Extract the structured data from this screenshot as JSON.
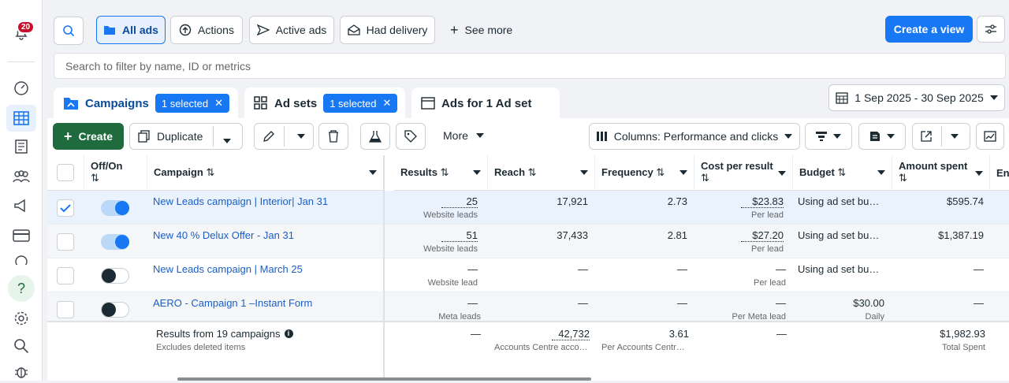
{
  "notifications": {
    "count": "20"
  },
  "toolbar": {
    "all_ads": "All ads",
    "actions": "Actions",
    "active_ads": "Active ads",
    "had_delivery": "Had delivery",
    "see_more": "See more",
    "create_view": "Create a view"
  },
  "search": {
    "placeholder": "Search to filter by name, ID or metrics"
  },
  "tabs": {
    "campaigns": "Campaigns",
    "campaigns_sel": "1 selected",
    "adsets": "Ad sets",
    "adsets_sel": "1 selected",
    "ads": "Ads for 1 Ad set"
  },
  "date_range": "1 Sep 2025 - 30 Sep 2025",
  "actions": {
    "create": "Create",
    "duplicate": "Duplicate",
    "more": "More",
    "columns": "Columns: Performance and clicks"
  },
  "headers": {
    "offon": "Off/On",
    "campaign": "Campaign",
    "results": "Results",
    "reach": "Reach",
    "frequency": "Frequency",
    "cpr": "Cost per result",
    "budget": "Budget",
    "spent": "Amount spent",
    "extra": "En"
  },
  "rows": [
    {
      "name": "New Leads campaign | Interior| Jan 31",
      "results": "25",
      "results_sub": "Website leads",
      "reach": "17,921",
      "freq": "2.73",
      "cpr": "$23.83",
      "cpr_sub": "Per lead",
      "budget": "Using ad set bu…",
      "budget_sub": "",
      "spent": "$595.74"
    },
    {
      "name": "New 40 % Delux Offer - Jan 31",
      "results": "51",
      "results_sub": "Website leads",
      "reach": "37,433",
      "freq": "2.81",
      "cpr": "$27.20",
      "cpr_sub": "Per lead",
      "budget": "Using ad set bu…",
      "budget_sub": "",
      "spent": "$1,387.19"
    },
    {
      "name": "New Leads campaign | March 25",
      "results": "—",
      "results_sub": "Website lead",
      "reach": "—",
      "freq": "—",
      "cpr": "—",
      "cpr_sub": "Per lead",
      "budget": "Using ad set bu…",
      "budget_sub": "",
      "spent": "—"
    },
    {
      "name": "AERO - Campaign 1 –Instant Form",
      "results": "—",
      "results_sub": "Meta leads",
      "reach": "—",
      "freq": "—",
      "cpr": "—",
      "cpr_sub": "Per Meta lead",
      "budget": "$30.00",
      "budget_sub": "Daily",
      "spent": "—"
    }
  ],
  "summary": {
    "title": "Results from 19 campaigns",
    "sub": "Excludes deleted items",
    "results": "—",
    "reach": "42,732",
    "reach_sub": "Accounts Centre acco…",
    "freq": "3.61",
    "freq_sub": "Per Accounts Centr…",
    "cpr": "—",
    "spent": "$1,982.93",
    "spent_sub": "Total Spent"
  }
}
